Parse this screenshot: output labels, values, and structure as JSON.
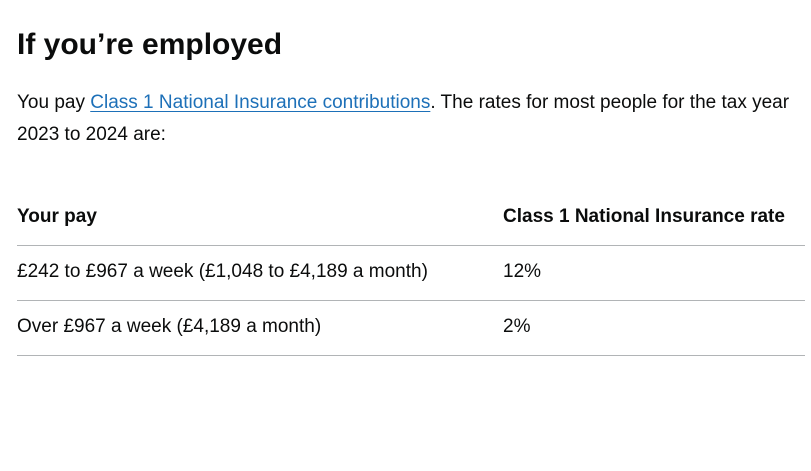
{
  "heading": "If you’re employed",
  "intro": {
    "before": "You pay ",
    "link": "Class 1 National Insurance contributions",
    "after": ". The rates for most people for the tax year 2023 to 2024 are:"
  },
  "table": {
    "header": [
      "Your pay",
      "Class 1 National Insurance rate"
    ],
    "rows": [
      [
        "£242 to £967 a week (£1,048 to £4,189 a month)",
        "12%"
      ],
      [
        "Over £967 a week (£4,189 a month)",
        "2%"
      ]
    ]
  }
}
